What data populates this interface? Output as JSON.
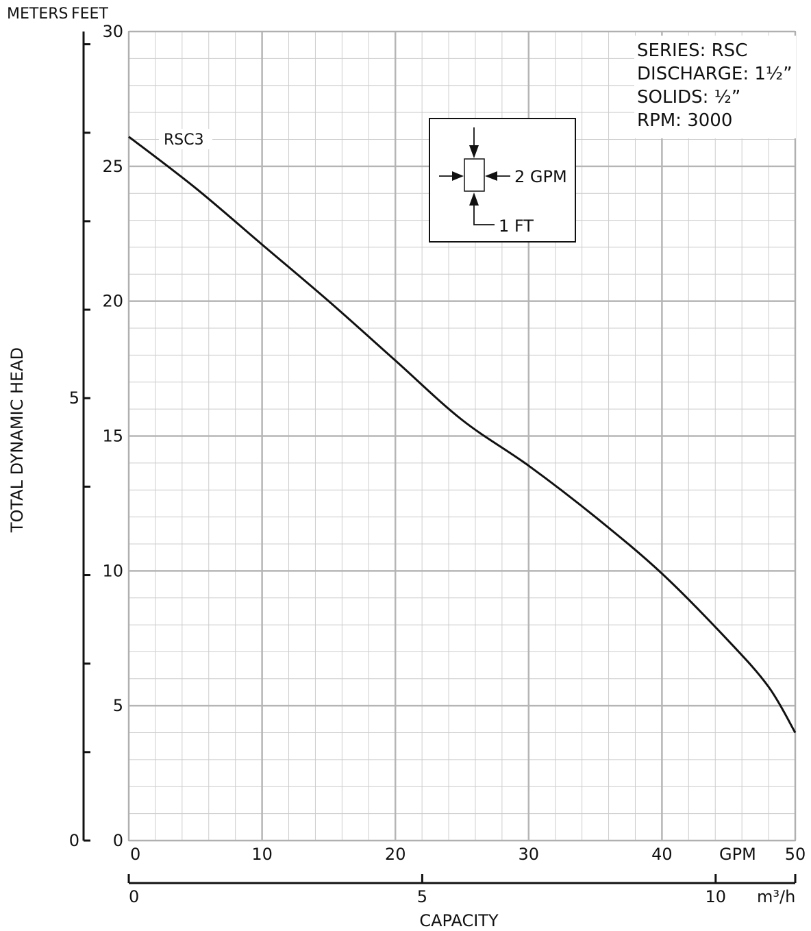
{
  "header": {
    "meters_label": "METERS",
    "feet_label": "FEET"
  },
  "info": {
    "series": "SERIES: RSC",
    "discharge": "DISCHARGE: 1½”",
    "solids": "SOLIDS: ½”",
    "rpm": "RPM: 3000"
  },
  "legend_box": {
    "h_label": "2 GPM",
    "v_label": "1 FT"
  },
  "chart_data": {
    "type": "line",
    "ylabel": "TOTAL DYNAMIC HEAD",
    "xlabel": "CAPACITY",
    "x_unit": "GPM",
    "x2_unit": "m³/h",
    "xlim": [
      0,
      50
    ],
    "ylim": [
      0,
      30
    ],
    "x_ticks": [
      "0",
      "10",
      "20",
      "30",
      "40",
      "50"
    ],
    "y_ticks": [
      "0",
      "5",
      "10",
      "15",
      "20",
      "25",
      "30"
    ],
    "meters_ticks": [
      "0",
      "5"
    ],
    "x2_ticks": [
      "0",
      "5",
      "10"
    ],
    "grid": true,
    "series": [
      {
        "name": "RSC3",
        "x": [
          0,
          5,
          10,
          15,
          20,
          25,
          30,
          35,
          40,
          45,
          48,
          50
        ],
        "values": [
          26.1,
          24.2,
          22.1,
          20.0,
          17.8,
          15.6,
          13.9,
          12.0,
          9.9,
          7.4,
          5.7,
          4.0
        ]
      }
    ]
  }
}
